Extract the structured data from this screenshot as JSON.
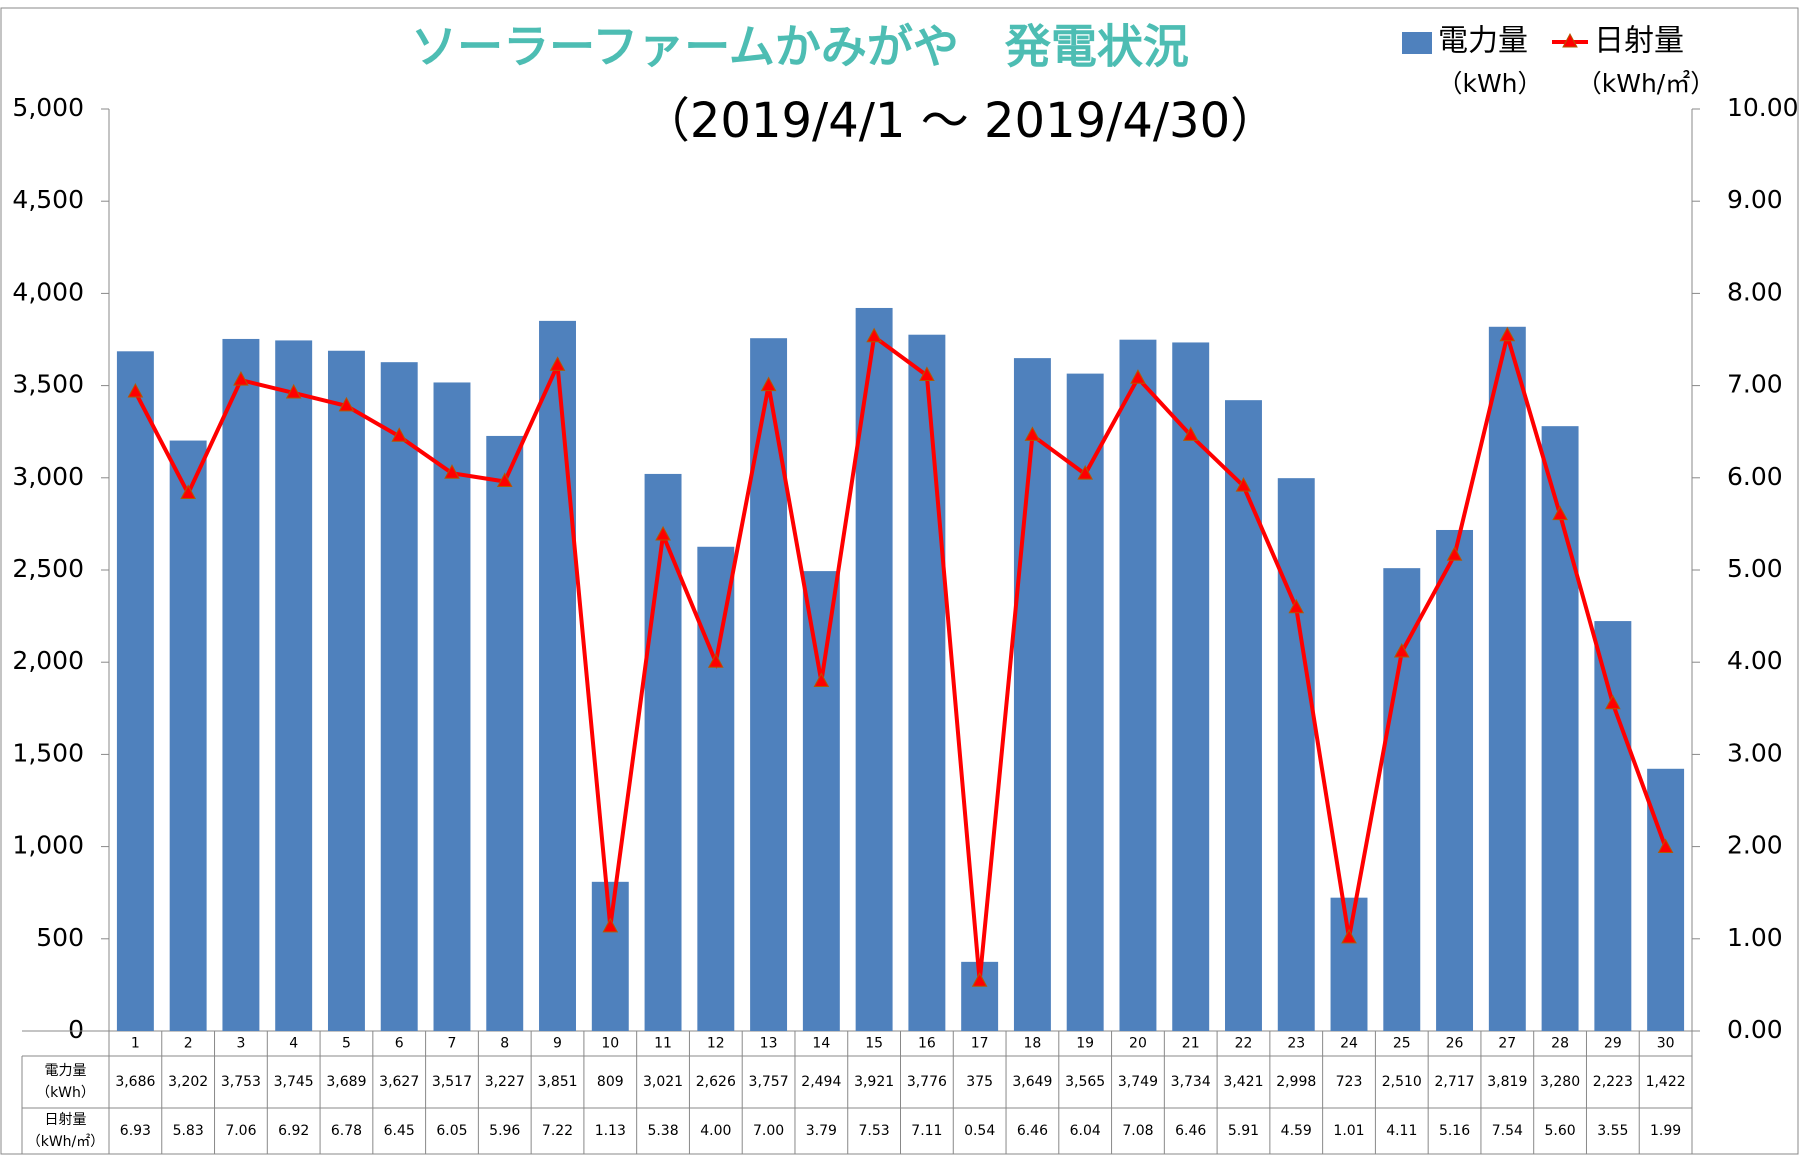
{
  "chart_data": {
    "type": "bar_line",
    "title": "ソーラーファームかみがや　発電状況",
    "subtitle": "（2019/4/1 ～ 2019/4/30）",
    "categories": [
      "1",
      "2",
      "3",
      "4",
      "5",
      "6",
      "7",
      "8",
      "9",
      "10",
      "11",
      "12",
      "13",
      "14",
      "15",
      "16",
      "17",
      "18",
      "19",
      "20",
      "21",
      "22",
      "23",
      "24",
      "25",
      "26",
      "27",
      "28",
      "29",
      "30"
    ],
    "series": [
      {
        "name": "電力量",
        "unit": "（kWh）",
        "type": "bar",
        "color": "#4f81bd",
        "values": [
          3686,
          3202,
          3753,
          3745,
          3689,
          3627,
          3517,
          3227,
          3851,
          809,
          3021,
          2626,
          3757,
          2494,
          3921,
          3776,
          375,
          3649,
          3565,
          3749,
          3734,
          3421,
          2998,
          723,
          2510,
          2717,
          3819,
          3280,
          2223,
          1422
        ],
        "value_labels": [
          "3,686",
          "3,202",
          "3,753",
          "3,745",
          "3,689",
          "3,627",
          "3,517",
          "3,227",
          "3,851",
          "809",
          "3,021",
          "2,626",
          "3,757",
          "2,494",
          "3,921",
          "3,776",
          "375",
          "3,649",
          "3,565",
          "3,749",
          "3,734",
          "3,421",
          "2,998",
          "723",
          "2,510",
          "2,717",
          "3,819",
          "3,280",
          "2,223",
          "1,422"
        ]
      },
      {
        "name": "日射量",
        "unit": "（kWh/㎡）",
        "type": "line",
        "axis": "y2",
        "color": "#ff0000",
        "values": [
          6.93,
          5.83,
          7.06,
          6.92,
          6.78,
          6.45,
          6.05,
          5.96,
          7.22,
          1.13,
          5.38,
          4.0,
          7.0,
          3.79,
          7.53,
          7.11,
          0.54,
          6.46,
          6.04,
          7.08,
          6.46,
          5.91,
          4.59,
          1.01,
          4.11,
          5.16,
          7.54,
          5.6,
          3.55,
          1.99
        ],
        "value_labels": [
          "6.93",
          "5.83",
          "7.06",
          "6.92",
          "6.78",
          "6.45",
          "6.05",
          "5.96",
          "7.22",
          "1.13",
          "5.38",
          "4.00",
          "7.00",
          "3.79",
          "7.53",
          "7.11",
          "0.54",
          "6.46",
          "6.04",
          "7.08",
          "6.46",
          "5.91",
          "4.59",
          "1.01",
          "4.11",
          "5.16",
          "7.54",
          "5.60",
          "3.55",
          "1.99"
        ]
      }
    ],
    "ylim": [
      0,
      5000
    ],
    "yticks": [
      0,
      500,
      {
        "value": 1000,
        "label": "1,000"
      },
      {
        "value": 1500,
        "label": "1,500"
      },
      {
        "value": 2000,
        "label": "2,000"
      },
      {
        "value": 2500,
        "label": "2,500"
      },
      {
        "value": 3000,
        "label": "3,000"
      },
      {
        "value": 3500,
        "label": "3,500"
      },
      {
        "value": 4000,
        "label": "4,000"
      },
      {
        "value": 4500,
        "label": "4,500"
      },
      {
        "value": 5000,
        "label": "5,000"
      }
    ],
    "y2lim": [
      0,
      10
    ],
    "y2ticks": [
      {
        "value": 0,
        "label": "0.00"
      },
      {
        "value": 1,
        "label": "1.00"
      },
      {
        "value": 2,
        "label": "2.00"
      },
      {
        "value": 3,
        "label": "3.00"
      },
      {
        "value": 4,
        "label": "4.00"
      },
      {
        "value": 5,
        "label": "5.00"
      },
      {
        "value": 6,
        "label": "6.00"
      },
      {
        "value": 7,
        "label": "7.00"
      },
      {
        "value": 8,
        "label": "8.00"
      },
      {
        "value": 9,
        "label": "9.00"
      },
      {
        "value": 10,
        "label": "10.00"
      }
    ],
    "legend": "top-right"
  }
}
